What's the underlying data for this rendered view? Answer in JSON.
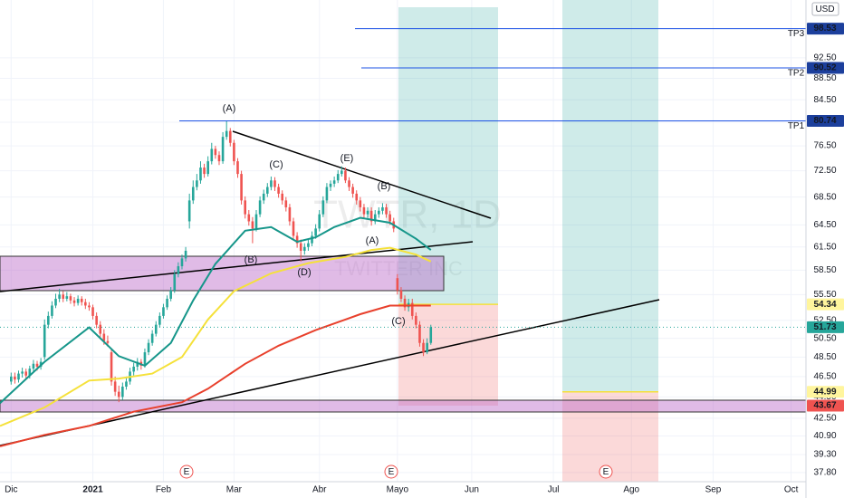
{
  "chart_data": {
    "type": "candlestick",
    "symbol": "TWTR, 1D",
    "company": "TWITTER INC",
    "currency": "USD",
    "log_scale": true,
    "grid": true,
    "up_color": "#26a69a",
    "down_color": "#ef5350",
    "xlim": [
      -3,
      214
    ],
    "xticks": [
      {
        "value": 0,
        "label": "Dic"
      },
      {
        "value": 22,
        "label": "2021"
      },
      {
        "value": 41,
        "label": "Feb"
      },
      {
        "value": 60,
        "label": "Mar"
      },
      {
        "value": 83,
        "label": "Abr"
      },
      {
        "value": 104,
        "label": "Mayo"
      },
      {
        "value": 124,
        "label": "Jun"
      },
      {
        "value": 146,
        "label": "Jul"
      },
      {
        "value": 167,
        "label": "Ago"
      },
      {
        "value": 189,
        "label": "Sep"
      },
      {
        "value": 210,
        "label": "Oct"
      }
    ],
    "ylim": [
      37.06,
      104.8
    ],
    "yticks": [
      {
        "value": 92.5,
        "label": "92.50"
      },
      {
        "value": 88.5,
        "label": "88.50"
      },
      {
        "value": 84.5,
        "label": "84.50"
      },
      {
        "value": 80.5,
        "label": "80.50"
      },
      {
        "value": 76.5,
        "label": "76.50"
      },
      {
        "value": 72.5,
        "label": "72.50"
      },
      {
        "value": 68.5,
        "label": "68.50"
      },
      {
        "value": 64.5,
        "label": "64.50"
      },
      {
        "value": 61.5,
        "label": "61.50"
      },
      {
        "value": 58.5,
        "label": "58.50"
      },
      {
        "value": 55.5,
        "label": "55.50"
      },
      {
        "value": 52.5,
        "label": "52.50"
      },
      {
        "value": 50.5,
        "label": "50.50"
      },
      {
        "value": 48.5,
        "label": "48.50"
      },
      {
        "value": 46.5,
        "label": "46.50"
      },
      {
        "value": 44.5,
        "label": "44.50"
      },
      {
        "value": 42.5,
        "label": "42.50"
      },
      {
        "value": 40.9,
        "label": "40.90"
      },
      {
        "value": 39.3,
        "label": "39.30"
      },
      {
        "value": 37.8,
        "label": "37.80"
      }
    ],
    "candles": [
      [
        46.0,
        46.9,
        45.7,
        46.5
      ],
      [
        46.5,
        46.9,
        45.8,
        46.2
      ],
      [
        46.2,
        47.1,
        45.9,
        46.8
      ],
      [
        46.8,
        47.4,
        46.4,
        47.0
      ],
      [
        47.0,
        47.3,
        46.2,
        46.6
      ],
      [
        46.6,
        47.6,
        46.3,
        47.3
      ],
      [
        47.3,
        48.2,
        47.0,
        47.8
      ],
      [
        47.8,
        48.1,
        47.1,
        47.5
      ],
      [
        47.5,
        48.4,
        47.2,
        48.0
      ],
      [
        48.5,
        52.6,
        48.2,
        52.0
      ],
      [
        52.0,
        53.5,
        51.6,
        53.0
      ],
      [
        53.0,
        54.7,
        52.7,
        54.2
      ],
      [
        54.2,
        55.6,
        53.9,
        55.0
      ],
      [
        55.0,
        56.2,
        54.6,
        55.5
      ],
      [
        55.5,
        55.9,
        54.6,
        55.0
      ],
      [
        55.0,
        55.8,
        54.7,
        55.3
      ],
      [
        55.3,
        55.6,
        54.4,
        54.8
      ],
      [
        54.8,
        55.2,
        54.1,
        54.5
      ],
      [
        54.5,
        55.4,
        54.2,
        55.0
      ],
      [
        55.0,
        55.3,
        54.2,
        54.6
      ],
      [
        54.6,
        55.0,
        53.8,
        54.2
      ],
      [
        54.2,
        54.6,
        53.6,
        54.0
      ],
      [
        54.0,
        54.3,
        52.6,
        53.0
      ],
      [
        53.0,
        53.4,
        51.6,
        52.0
      ],
      [
        52.0,
        52.4,
        50.6,
        51.0
      ],
      [
        51.0,
        51.5,
        49.8,
        50.2
      ],
      [
        50.2,
        50.8,
        49.6,
        50.0
      ],
      [
        49.0,
        49.4,
        45.6,
        46.0
      ],
      [
        46.0,
        46.5,
        44.6,
        45.0
      ],
      [
        45.0,
        45.6,
        44.0,
        44.5
      ],
      [
        44.5,
        45.9,
        44.2,
        45.5
      ],
      [
        45.5,
        46.5,
        45.2,
        46.0
      ],
      [
        46.0,
        47.4,
        45.7,
        47.0
      ],
      [
        47.0,
        47.9,
        46.6,
        47.5
      ],
      [
        47.5,
        48.4,
        47.1,
        48.0
      ],
      [
        48.0,
        48.3,
        47.2,
        47.6
      ],
      [
        47.6,
        49.4,
        47.4,
        49.0
      ],
      [
        49.0,
        50.4,
        48.7,
        50.0
      ],
      [
        50.0,
        51.4,
        49.7,
        51.0
      ],
      [
        51.0,
        52.4,
        50.7,
        52.0
      ],
      [
        52.0,
        53.4,
        51.7,
        53.0
      ],
      [
        53.0,
        54.4,
        52.7,
        54.0
      ],
      [
        54.0,
        55.4,
        53.7,
        55.0
      ],
      [
        55.0,
        56.4,
        54.7,
        56.0
      ],
      [
        56.0,
        58.5,
        55.7,
        58.0
      ],
      [
        58.0,
        59.5,
        57.6,
        59.0
      ],
      [
        59.0,
        60.5,
        58.6,
        60.0
      ],
      [
        60.0,
        61.5,
        59.6,
        61.0
      ],
      [
        65.0,
        69.0,
        64.0,
        68.0
      ],
      [
        68.0,
        71.0,
        67.5,
        70.0
      ],
      [
        70.0,
        72.0,
        69.5,
        71.0
      ],
      [
        71.0,
        74.0,
        70.5,
        73.0
      ],
      [
        73.0,
        73.6,
        71.4,
        72.0
      ],
      [
        72.0,
        74.8,
        71.6,
        74.0
      ],
      [
        74.0,
        77.0,
        73.5,
        76.0
      ],
      [
        76.0,
        76.5,
        74.4,
        75.0
      ],
      [
        75.0,
        75.6,
        73.4,
        74.0
      ],
      [
        74.0,
        78.8,
        73.6,
        78.0
      ],
      [
        78.0,
        80.8,
        77.5,
        79.0
      ],
      [
        79.0,
        79.5,
        76.4,
        77.0
      ],
      [
        77.0,
        77.5,
        73.4,
        74.0
      ],
      [
        74.0,
        74.5,
        71.4,
        72.0
      ],
      [
        72.0,
        72.5,
        67.4,
        68.0
      ],
      [
        68.0,
        68.6,
        65.4,
        66.0
      ],
      [
        66.0,
        66.6,
        64.4,
        65.0
      ],
      [
        65.0,
        65.6,
        62.0,
        64.0
      ],
      [
        64.0,
        66.6,
        63.6,
        66.0
      ],
      [
        66.0,
        68.6,
        65.6,
        68.0
      ],
      [
        68.0,
        69.6,
        67.5,
        69.0
      ],
      [
        69.0,
        70.6,
        68.5,
        70.0
      ],
      [
        70.0,
        71.6,
        69.5,
        71.0
      ],
      [
        71.0,
        71.5,
        69.4,
        70.0
      ],
      [
        70.0,
        70.5,
        68.4,
        69.0
      ],
      [
        69.0,
        69.5,
        67.4,
        68.0
      ],
      [
        68.0,
        68.5,
        66.4,
        67.0
      ],
      [
        67.0,
        67.5,
        64.4,
        65.0
      ],
      [
        65.0,
        65.5,
        62.4,
        63.0
      ],
      [
        63.0,
        63.5,
        61.4,
        62.0
      ],
      [
        62.0,
        62.5,
        59.6,
        61.0
      ],
      [
        61.0,
        62.0,
        60.5,
        61.5
      ],
      [
        61.5,
        62.6,
        61.0,
        62.0
      ],
      [
        62.0,
        63.6,
        61.6,
        63.0
      ],
      [
        63.0,
        64.6,
        62.6,
        64.0
      ],
      [
        64.0,
        66.6,
        63.6,
        66.0
      ],
      [
        66.0,
        68.6,
        65.6,
        68.0
      ],
      [
        68.0,
        70.6,
        67.6,
        70.0
      ],
      [
        70.0,
        71.0,
        69.4,
        70.5
      ],
      [
        70.5,
        71.6,
        70.0,
        71.0
      ],
      [
        71.0,
        72.6,
        70.6,
        72.0
      ],
      [
        72.0,
        73.2,
        71.6,
        72.5
      ],
      [
        72.5,
        73.0,
        70.6,
        71.0
      ],
      [
        71.0,
        71.5,
        69.4,
        70.0
      ],
      [
        70.0,
        70.5,
        68.4,
        69.0
      ],
      [
        69.0,
        69.5,
        67.4,
        68.0
      ],
      [
        68.0,
        68.5,
        66.4,
        67.0
      ],
      [
        67.0,
        67.5,
        65.4,
        66.0
      ],
      [
        66.0,
        67.0,
        65.5,
        66.5
      ],
      [
        66.5,
        67.0,
        64.4,
        65.0
      ],
      [
        65.0,
        66.6,
        64.6,
        66.0
      ],
      [
        66.0,
        67.0,
        65.5,
        66.5
      ],
      [
        66.5,
        67.6,
        66.0,
        67.0
      ],
      [
        67.0,
        67.5,
        65.5,
        66.0
      ],
      [
        66.0,
        66.5,
        64.5,
        65.0
      ],
      [
        65.0,
        65.5,
        63.5,
        64.0
      ],
      [
        57.5,
        58.0,
        55.5,
        56.0
      ],
      [
        56.0,
        56.4,
        54.6,
        55.0
      ],
      [
        55.0,
        55.4,
        53.6,
        54.0
      ],
      [
        54.0,
        55.0,
        53.5,
        54.5
      ],
      [
        54.5,
        55.0,
        52.6,
        53.0
      ],
      [
        53.0,
        53.4,
        51.6,
        52.0
      ],
      [
        52.0,
        52.4,
        49.6,
        50.0
      ],
      [
        50.0,
        50.4,
        48.6,
        49.0
      ],
      [
        49.0,
        50.5,
        48.8,
        50.0
      ],
      [
        50.0,
        52.0,
        49.8,
        51.73
      ]
    ],
    "moving_averages": [
      {
        "color": "#16968a",
        "x": [
          -3,
          9,
          21,
          29,
          36,
          43,
          49,
          55,
          63,
          70,
          77,
          82,
          87,
          94,
          102,
          109,
          113
        ],
        "values": [
          43.9,
          48.0,
          51.7,
          48.6,
          47.6,
          50.0,
          54.8,
          59.3,
          63.7,
          64.2,
          62.2,
          62.8,
          64.2,
          65.5,
          64.8,
          62.6,
          61.1
        ]
      },
      {
        "color": "#f5e13a",
        "x": [
          -3,
          9,
          21,
          29,
          38,
          46,
          53,
          60,
          70,
          80,
          90,
          97,
          102,
          109,
          113
        ],
        "values": [
          41.8,
          43.5,
          46.1,
          46.3,
          46.8,
          48.5,
          52.6,
          55.9,
          58.1,
          59.4,
          60.2,
          61.1,
          61.4,
          60.5,
          59.6
        ]
      },
      {
        "color": "#e8402c",
        "x": [
          -3,
          9,
          21,
          33,
          46,
          53,
          63,
          72,
          82,
          94,
          102,
          113
        ],
        "values": [
          40.0,
          41.0,
          41.8,
          43.1,
          44.0,
          45.3,
          47.8,
          49.7,
          51.4,
          53.2,
          54.2,
          54.2
        ]
      }
    ],
    "targets": [
      {
        "label": "TP3",
        "value": 98.53
      },
      {
        "label": "TP2",
        "value": 90.52
      },
      {
        "label": "TP1",
        "value": 80.74
      }
    ],
    "last_price": 51.73,
    "positions": [
      {
        "entry": 54.34,
        "stop": 43.67
      },
      {
        "entry": 44.99
      }
    ],
    "annotations": [
      "(A)",
      "(C)",
      "(E)",
      "(B)",
      "(A)",
      "(B)",
      "(D)",
      "(C)"
    ],
    "events": [
      "E",
      "E",
      "E"
    ]
  }
}
